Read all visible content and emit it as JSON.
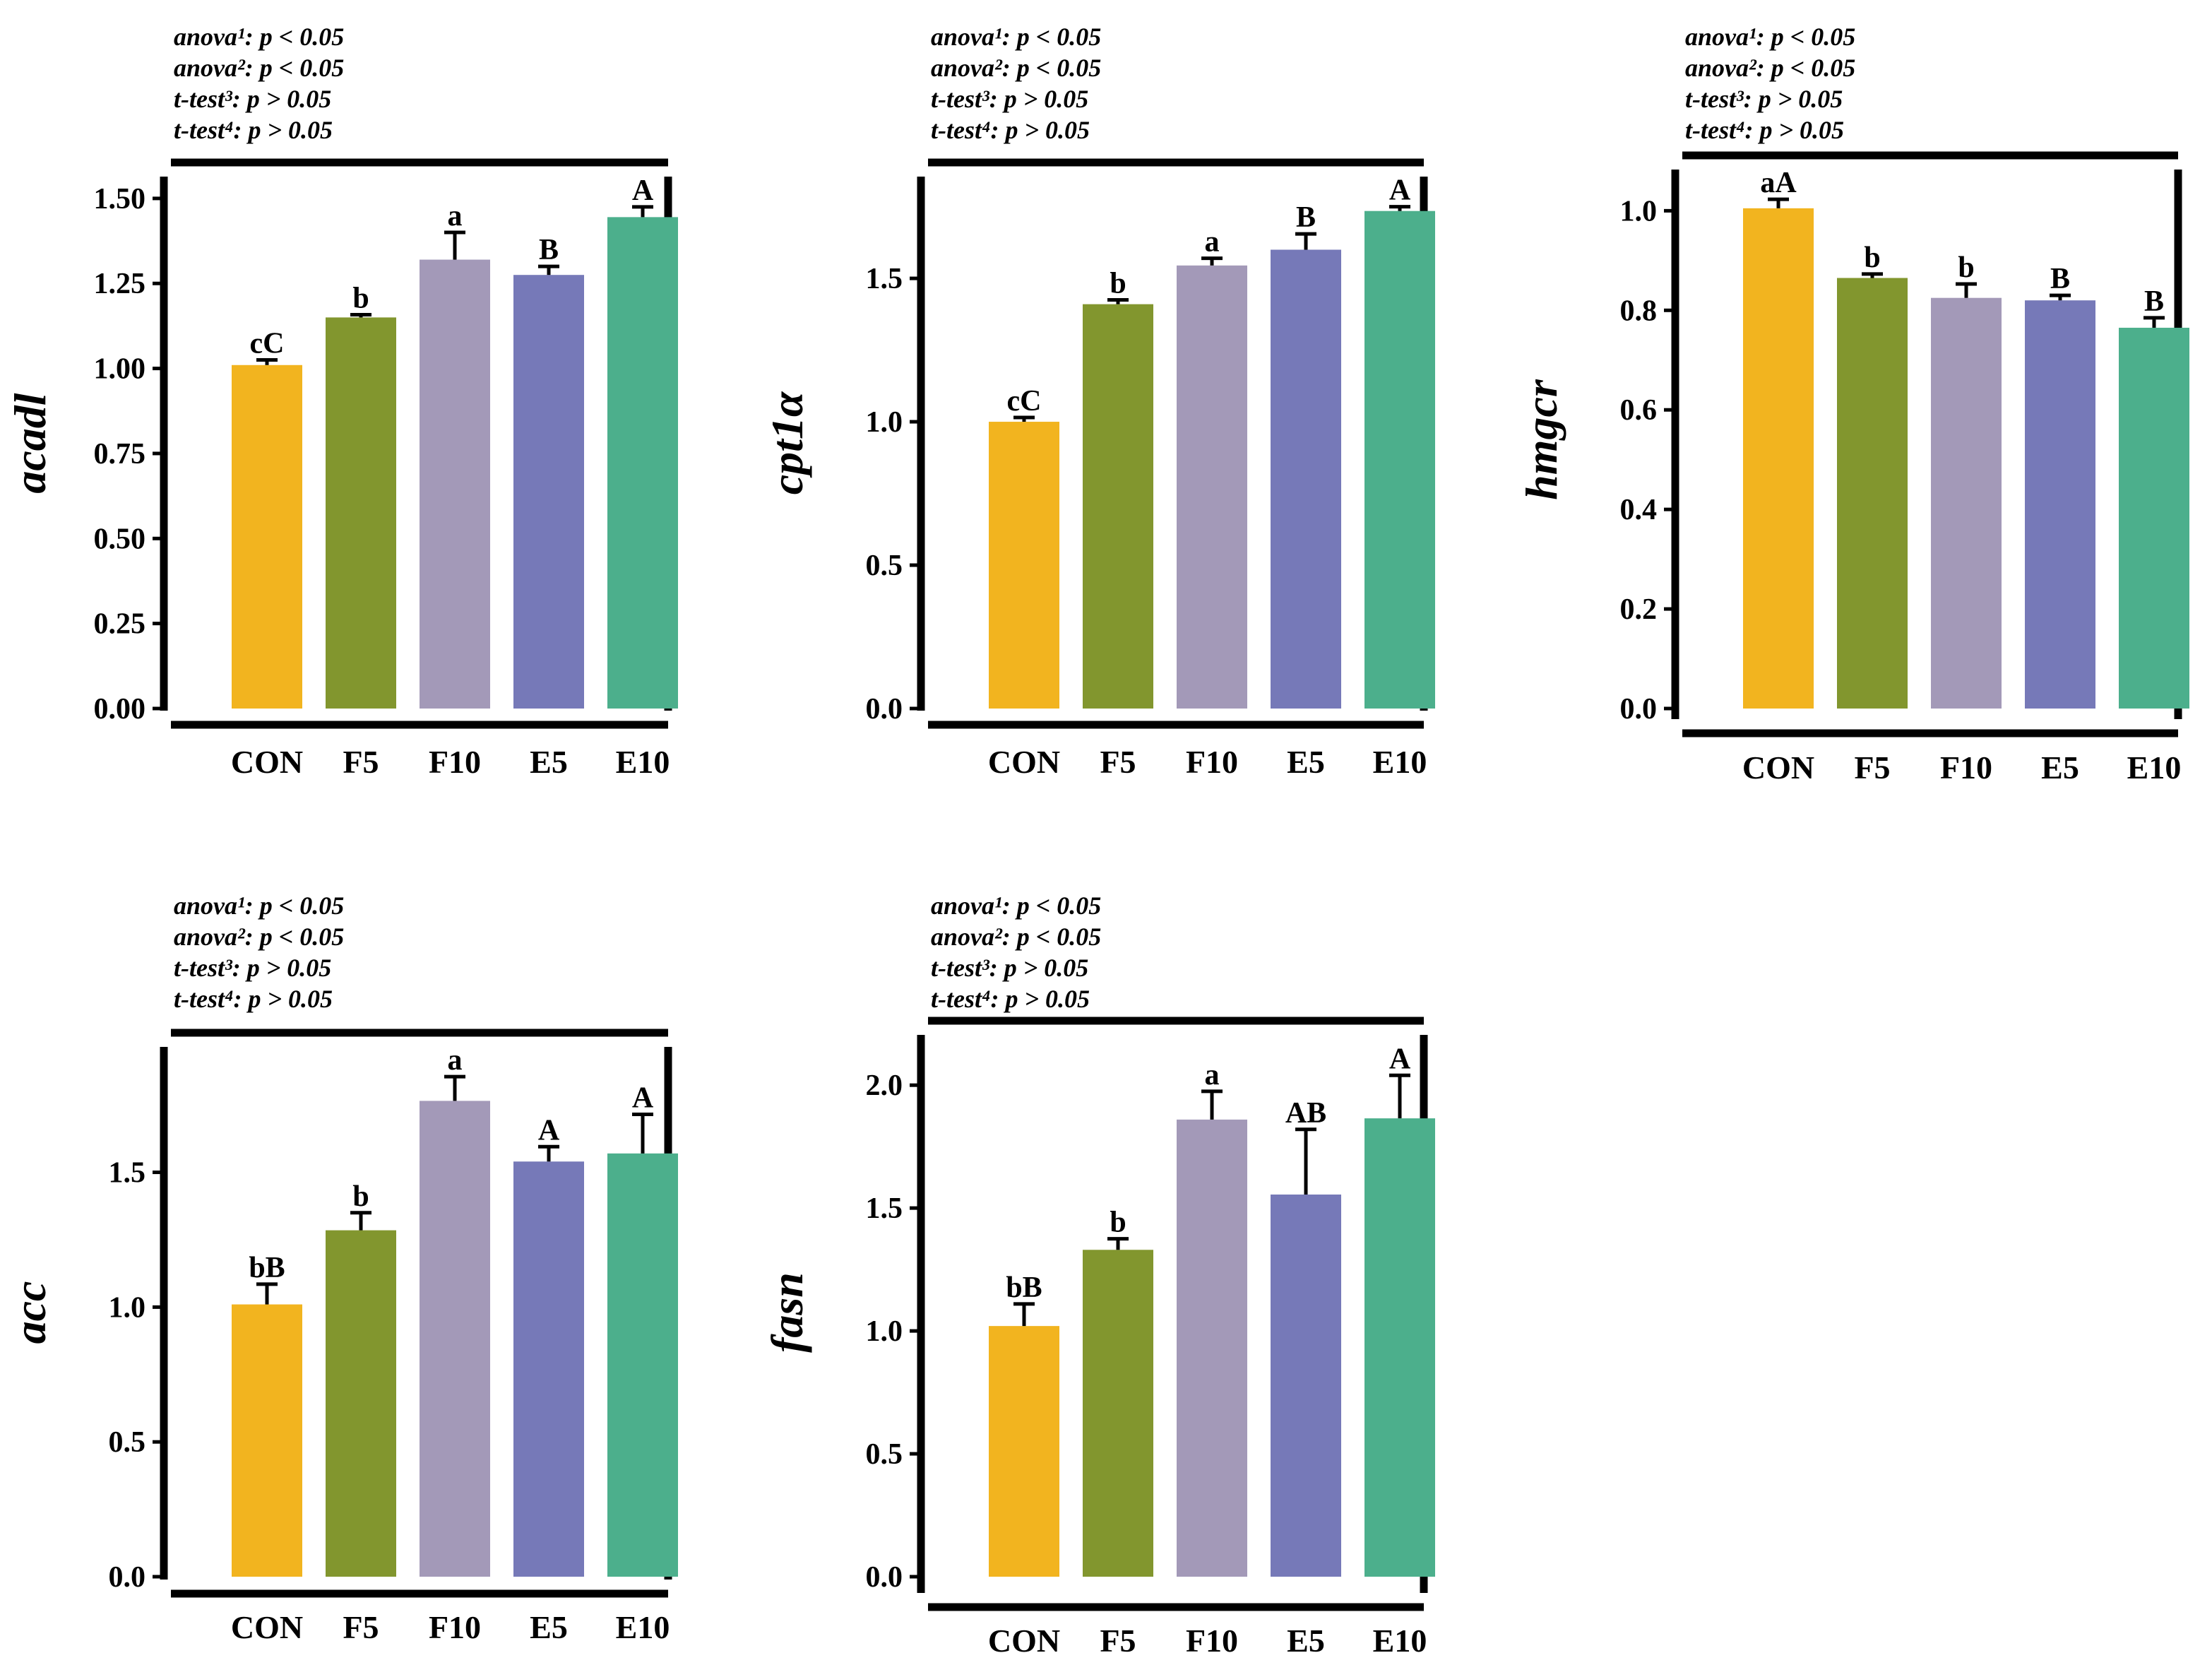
{
  "chart_data": [
    {
      "type": "bar",
      "ylabel": "acadl",
      "categories": [
        "CON",
        "F5",
        "F10",
        "E5",
        "E10"
      ],
      "values": [
        1.01,
        1.15,
        1.32,
        1.275,
        1.445
      ],
      "errors": [
        0.015,
        0.008,
        0.08,
        0.025,
        0.03
      ],
      "labels": [
        "cC",
        "b",
        "a",
        "B",
        "A"
      ],
      "ylim": [
        0,
        1.56
      ],
      "yticks": [
        "0.00",
        "0.25",
        "0.50",
        "0.75",
        "1.00",
        "1.25",
        "1.50"
      ],
      "stats": [
        "anova¹: p < 0.05",
        "anova²: p < 0.05",
        "t-test³: p > 0.05",
        "t-test⁴: p > 0.05"
      ]
    },
    {
      "type": "bar",
      "ylabel": "cpt1α",
      "categories": [
        "CON",
        "F5",
        "F10",
        "E5",
        "E10"
      ],
      "values": [
        1.0,
        1.41,
        1.545,
        1.6,
        1.735
      ],
      "errors": [
        0.015,
        0.015,
        0.025,
        0.055,
        0.015
      ],
      "labels": [
        "cC",
        "b",
        "a",
        "B",
        "A"
      ],
      "ylim": [
        0,
        1.85
      ],
      "yticks": [
        "0.0",
        "0.5",
        "1.0",
        "1.5"
      ],
      "stats": [
        "anova¹: p < 0.05",
        "anova²: p < 0.05",
        "t-test³: p > 0.05",
        "t-test⁴: p > 0.05"
      ]
    },
    {
      "type": "bar",
      "ylabel": "hmgcr",
      "categories": [
        "CON",
        "F5",
        "F10",
        "E5",
        "E10"
      ],
      "values": [
        1.005,
        0.865,
        0.825,
        0.82,
        0.765
      ],
      "errors": [
        0.018,
        0.008,
        0.028,
        0.01,
        0.02
      ],
      "labels": [
        "aA",
        "b",
        "b",
        "B",
        "B"
      ],
      "ylim": [
        0,
        1.08
      ],
      "yticks": [
        "0.0",
        "0.2",
        "0.4",
        "0.6",
        "0.8",
        "1.0"
      ],
      "stats": [
        "anova¹: p < 0.05",
        "anova²: p < 0.05",
        "t-test³: p > 0.05",
        "t-test⁴: p > 0.05"
      ]
    },
    {
      "type": "bar",
      "ylabel": "acc",
      "categories": [
        "CON",
        "F5",
        "F10",
        "E5",
        "E10"
      ],
      "values": [
        1.01,
        1.285,
        1.765,
        1.54,
        1.57
      ],
      "errors": [
        0.075,
        0.065,
        0.09,
        0.055,
        0.145
      ],
      "labels": [
        "bB",
        "b",
        "a",
        "A",
        "A"
      ],
      "ylim": [
        0,
        1.96
      ],
      "yticks": [
        "0.0",
        "0.5",
        "1.0",
        "1.5"
      ],
      "stats": [
        "anova¹: p < 0.05",
        "anova²: p < 0.05",
        "t-test³: p > 0.05",
        "t-test⁴: p > 0.05"
      ]
    },
    {
      "type": "bar",
      "ylabel": "fasn",
      "categories": [
        "CON",
        "F5",
        "F10",
        "E5",
        "E10"
      ],
      "values": [
        1.02,
        1.33,
        1.86,
        1.555,
        1.865
      ],
      "errors": [
        0.09,
        0.045,
        0.115,
        0.265,
        0.175
      ],
      "labels": [
        "bB",
        "b",
        "a",
        "AB",
        "A"
      ],
      "ylim": [
        0,
        2.15
      ],
      "yticks": [
        "0.0",
        "0.5",
        "1.0",
        "1.5",
        "2.0"
      ],
      "stats": [
        "anova¹: p < 0.05",
        "anova²: p < 0.05",
        "t-test³: p > 0.05",
        "t-test⁴: p > 0.05"
      ]
    }
  ],
  "colors": [
    "#F2B41F",
    "#82962E",
    "#A399B8",
    "#7679B8",
    "#4CAF8C"
  ]
}
